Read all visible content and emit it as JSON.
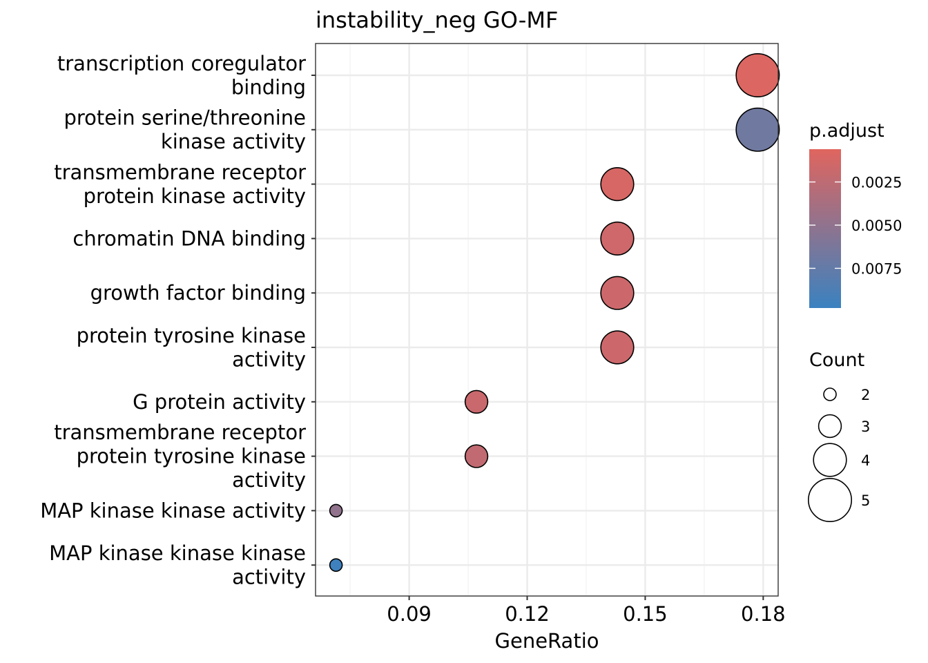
{
  "chart_data": {
    "type": "scatter",
    "title": "instability_neg GO-MF",
    "xlabel": "GeneRatio",
    "ylabel": "",
    "xlim": [
      0.0662,
      0.1838
    ],
    "xticks": [
      0.09,
      0.12,
      0.15,
      0.18
    ],
    "xtick_labels": [
      "0.09",
      "0.12",
      "0.15",
      "0.18"
    ],
    "grid": true,
    "terms": [
      {
        "label": [
          "transcription coregulator",
          "binding"
        ],
        "gene_ratio": 0.1786,
        "count": 5,
        "p_adjust": 0.0008
      },
      {
        "label": [
          "protein serine/threonine",
          "kinase activity"
        ],
        "gene_ratio": 0.1786,
        "count": 5,
        "p_adjust": 0.0068
      },
      {
        "label": [
          "transmembrane receptor",
          "protein kinase activity"
        ],
        "gene_ratio": 0.1429,
        "count": 4,
        "p_adjust": 0.0011
      },
      {
        "label": [
          "chromatin DNA binding"
        ],
        "gene_ratio": 0.1429,
        "count": 4,
        "p_adjust": 0.0016
      },
      {
        "label": [
          "growth factor binding"
        ],
        "gene_ratio": 0.1429,
        "count": 4,
        "p_adjust": 0.0017
      },
      {
        "label": [
          "protein tyrosine kinase",
          "activity"
        ],
        "gene_ratio": 0.1429,
        "count": 4,
        "p_adjust": 0.0017
      },
      {
        "label": [
          "G protein activity"
        ],
        "gene_ratio": 0.1071,
        "count": 3,
        "p_adjust": 0.0019
      },
      {
        "label": [
          "transmembrane receptor",
          "protein tyrosine kinase",
          "activity"
        ],
        "gene_ratio": 0.1071,
        "count": 3,
        "p_adjust": 0.0023
      },
      {
        "label": [
          "MAP kinase kinase activity"
        ],
        "gene_ratio": 0.0714,
        "count": 2,
        "p_adjust": 0.005
      },
      {
        "label": [
          "MAP kinase kinase kinase",
          "activity"
        ],
        "gene_ratio": 0.0714,
        "count": 2,
        "p_adjust": 0.0096
      }
    ],
    "legend_color": {
      "title": "p.adjust",
      "placement": "right",
      "range": [
        0.0006,
        0.0098
      ],
      "colors": {
        "low": "#E0655F",
        "high": "#3A82C0"
      },
      "ticks": [
        0.0025,
        0.005,
        0.0075
      ],
      "tick_labels": [
        "0.0025",
        "0.0050",
        "0.0075"
      ]
    },
    "legend_size": {
      "title": "Count",
      "placement": "right",
      "values": [
        2,
        3,
        4,
        5
      ],
      "labels": [
        "2",
        "3",
        "4",
        "5"
      ]
    }
  }
}
